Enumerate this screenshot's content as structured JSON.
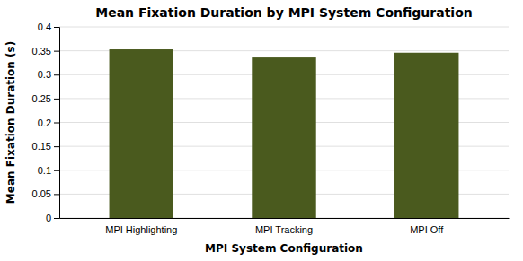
{
  "chart_data": {
    "type": "bar",
    "title": "Mean Fixation Duration by MPI System Configuration",
    "xlabel": "MPI System Configuration",
    "ylabel": "Mean Fixation Duration (s)",
    "categories": [
      "MPI Highlighting",
      "MPI Tracking",
      "MPI Off"
    ],
    "values": [
      0.353,
      0.336,
      0.346
    ],
    "color": "#4a5a1e",
    "ylim": [
      0,
      0.4
    ],
    "yticks": [
      0,
      0.05,
      0.1,
      0.15,
      0.2,
      0.25,
      0.3,
      0.35,
      0.4
    ],
    "grid": true
  }
}
